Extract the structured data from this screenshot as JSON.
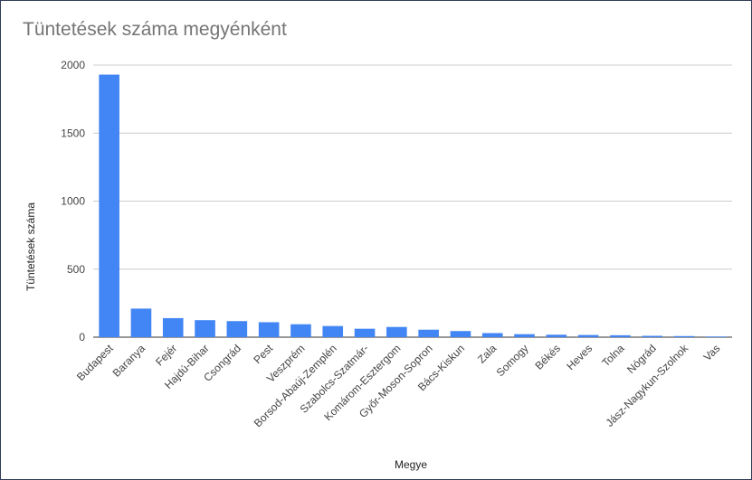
{
  "chart_data": {
    "type": "bar",
    "title": "Tüntetések száma megyénként",
    "xlabel": "Megye",
    "ylabel": "Tüntetések száma",
    "ylim": [
      0,
      2000
    ],
    "yticks": [
      0,
      500,
      1000,
      1500,
      2000
    ],
    "grid": true,
    "legend": "none",
    "color": "#4285f4",
    "categories": [
      "Budapest",
      "Baranya",
      "Fejér",
      "Hajdú-Bihar",
      "Csongrád",
      "Pest",
      "Veszprém",
      "Borsod-Abaúj-Zemplén",
      "Szabolcs-Szatmár-",
      "Komárom-Esztergom",
      "Győr-Moson-Sopron",
      "Bács-Kiskun",
      "Zala",
      "Somogy",
      "Békés",
      "Heves",
      "Tolna",
      "Nógrád",
      "Jász-Nagykun-Szolnok",
      "Vas"
    ],
    "values": [
      1930,
      210,
      140,
      125,
      118,
      110,
      95,
      82,
      62,
      75,
      55,
      45,
      30,
      22,
      18,
      16,
      14,
      10,
      8,
      5
    ]
  }
}
